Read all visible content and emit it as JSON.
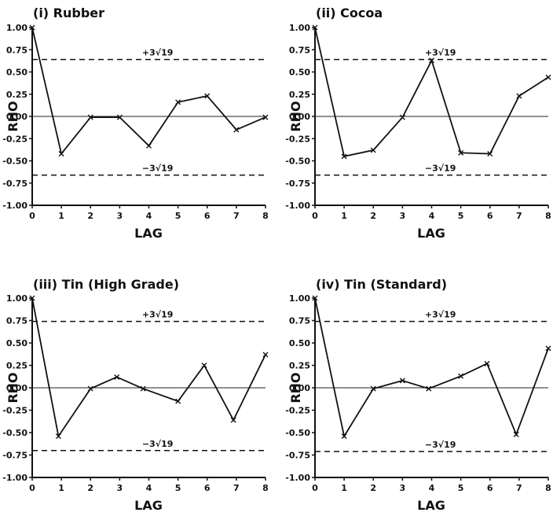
{
  "chart_data": [
    {
      "type": "line",
      "title": "(i) Rubber",
      "xlabel": "LAG",
      "ylabel": "RHO",
      "x": [
        0,
        1,
        2,
        3,
        4,
        5,
        6,
        7,
        8
      ],
      "values": [
        1.0,
        -0.42,
        -0.01,
        -0.01,
        -0.33,
        0.16,
        0.23,
        -0.15,
        -0.01
      ],
      "xlim": [
        0,
        8
      ],
      "ylim": [
        -1.0,
        1.0
      ],
      "xticks": [
        "0",
        "1",
        "2",
        "3",
        "4",
        "5",
        "6",
        "7",
        "8"
      ],
      "yticks": [
        "1.00",
        "0.75",
        "0.50",
        "0.25",
        "0.00",
        "-0.25",
        "-0.50",
        "-0.75",
        "-1.00"
      ],
      "zero_line": 0.0,
      "upper_band": {
        "value": 0.64,
        "label": "+3√19"
      },
      "lower_band": {
        "value": -0.66,
        "label": "−3√19"
      }
    },
    {
      "type": "line",
      "title": "(ii) Cocoa",
      "xlabel": "LAG",
      "ylabel": "RHO",
      "x": [
        0,
        1,
        2,
        3,
        4,
        5,
        6,
        7,
        8
      ],
      "values": [
        1.0,
        -0.45,
        -0.38,
        -0.01,
        0.63,
        -0.41,
        -0.42,
        0.23,
        0.44
      ],
      "xlim": [
        0,
        8
      ],
      "ylim": [
        -1.0,
        1.0
      ],
      "xticks": [
        "0",
        "1",
        "2",
        "3",
        "4",
        "5",
        "6",
        "7",
        "8"
      ],
      "yticks": [
        "1.00",
        "0.75",
        "0.50",
        "0.25",
        "0.00",
        "-0.25",
        "-0.50",
        "-0.75",
        "-1.00"
      ],
      "zero_line": 0.0,
      "upper_band": {
        "value": 0.64,
        "label": "+3√19"
      },
      "lower_band": {
        "value": -0.66,
        "label": "−3√19"
      }
    },
    {
      "type": "line",
      "title": "(iii) Tin (High Grade)",
      "xlabel": "LAG",
      "ylabel": "RHO",
      "x": [
        0,
        0.9,
        2,
        2.9,
        3.8,
        5,
        5.9,
        6.9,
        8
      ],
      "values": [
        1.0,
        -0.54,
        -0.01,
        0.12,
        -0.01,
        -0.15,
        0.25,
        -0.36,
        0.37
      ],
      "xlim": [
        0,
        8
      ],
      "ylim": [
        -1.0,
        1.0
      ],
      "xticks": [
        "0",
        "1",
        "2",
        "3",
        "4",
        "5",
        "6",
        "7",
        "8"
      ],
      "yticks": [
        "1.00",
        "0.75",
        "0.50",
        "0.25",
        "0.00",
        "-0.25",
        "-0.50",
        "-0.75",
        "-1.00"
      ],
      "zero_line": 0.0,
      "upper_band": {
        "value": 0.74,
        "label": "+3√19"
      },
      "lower_band": {
        "value": -0.7,
        "label": "−3√19"
      }
    },
    {
      "type": "line",
      "title": "(iv) Tin (Standard)",
      "xlabel": "LAG",
      "ylabel": "RHO",
      "x": [
        0,
        1,
        2,
        3,
        3.9,
        5,
        5.9,
        6.9,
        8
      ],
      "values": [
        1.0,
        -0.54,
        -0.01,
        0.08,
        -0.01,
        0.13,
        0.27,
        -0.52,
        0.44
      ],
      "xlim": [
        0,
        8
      ],
      "ylim": [
        -1.0,
        1.0
      ],
      "xticks": [
        "0",
        "1",
        "2",
        "3",
        "4",
        "5",
        "6",
        "7",
        "8"
      ],
      "yticks": [
        "1.00",
        "0.75",
        "0.50",
        "0.25",
        "0.00",
        "-0.25",
        "-0.50",
        "-0.75",
        "-1.00"
      ],
      "zero_line": 0.0,
      "upper_band": {
        "value": 0.74,
        "label": "+3√19"
      },
      "lower_band": {
        "value": -0.71,
        "label": "−3√19"
      }
    }
  ]
}
